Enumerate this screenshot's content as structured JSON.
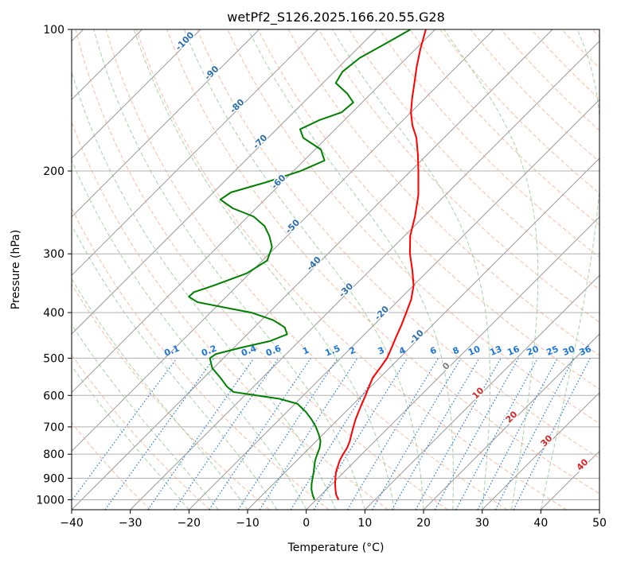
{
  "chart_data": {
    "type": "line",
    "title": "wetPf2_S126.2025.166.20.55.G28",
    "xlabel": "Temperature (°C)",
    "ylabel": "Pressure (hPa)",
    "xlim": [
      -40,
      50
    ],
    "ylim": [
      1050,
      100
    ],
    "y_scale": "log",
    "x_ticks": [
      -40,
      -30,
      -20,
      -10,
      0,
      10,
      20,
      30,
      40,
      50
    ],
    "y_ticks": [
      1000,
      900,
      800,
      700,
      600,
      500,
      400,
      300,
      200,
      100
    ],
    "grid": true,
    "series": [
      {
        "key": "temperature",
        "color": "#ff0000",
        "points": [
          [
            1000,
            3.8
          ],
          [
            975,
            2.5
          ],
          [
            950,
            1.5
          ],
          [
            925,
            0.5
          ],
          [
            900,
            -0.4
          ],
          [
            875,
            -1.3
          ],
          [
            850,
            -2.0
          ],
          [
            825,
            -2.7
          ],
          [
            800,
            -3.2
          ],
          [
            775,
            -3.6
          ],
          [
            750,
            -4.3
          ],
          [
            725,
            -5.2
          ],
          [
            700,
            -6.1
          ],
          [
            675,
            -7.0
          ],
          [
            650,
            -7.8
          ],
          [
            625,
            -8.6
          ],
          [
            600,
            -9.4
          ],
          [
            575,
            -10.3
          ],
          [
            550,
            -11.2
          ],
          [
            525,
            -11.6
          ],
          [
            500,
            -12.1
          ],
          [
            475,
            -13.1
          ],
          [
            450,
            -14.2
          ],
          [
            425,
            -15.3
          ],
          [
            400,
            -16.6
          ],
          [
            375,
            -18.0
          ],
          [
            350,
            -20.0
          ],
          [
            325,
            -22.8
          ],
          [
            300,
            -26.0
          ],
          [
            275,
            -29.0
          ],
          [
            250,
            -31.5
          ],
          [
            225,
            -34.6
          ],
          [
            200,
            -38.7
          ],
          [
            185,
            -41.5
          ],
          [
            170,
            -44.7
          ],
          [
            160,
            -47.5
          ],
          [
            150,
            -50.0
          ],
          [
            140,
            -52.2
          ],
          [
            130,
            -54.4
          ],
          [
            120,
            -56.8
          ],
          [
            110,
            -59.2
          ],
          [
            100,
            -61.6
          ]
        ]
      },
      {
        "key": "dewpoint",
        "color": "#008000",
        "points": [
          [
            1000,
            -0.3
          ],
          [
            975,
            -1.5
          ],
          [
            950,
            -2.6
          ],
          [
            925,
            -3.5
          ],
          [
            900,
            -4.3
          ],
          [
            875,
            -5.1
          ],
          [
            850,
            -6.0
          ],
          [
            825,
            -6.9
          ],
          [
            800,
            -7.6
          ],
          [
            775,
            -8.3
          ],
          [
            750,
            -9.3
          ],
          [
            725,
            -10.8
          ],
          [
            700,
            -12.5
          ],
          [
            675,
            -14.5
          ],
          [
            650,
            -16.8
          ],
          [
            625,
            -19.6
          ],
          [
            610,
            -23.5
          ],
          [
            600,
            -28.0
          ],
          [
            590,
            -32.5
          ],
          [
            575,
            -34.5
          ],
          [
            550,
            -37.2
          ],
          [
            525,
            -40.2
          ],
          [
            500,
            -42.3
          ],
          [
            490,
            -42.0
          ],
          [
            475,
            -38.8
          ],
          [
            460,
            -35.0
          ],
          [
            445,
            -33.2
          ],
          [
            430,
            -34.8
          ],
          [
            415,
            -38.0
          ],
          [
            400,
            -43.0
          ],
          [
            390,
            -48.5
          ],
          [
            380,
            -54.0
          ],
          [
            370,
            -56.4
          ],
          [
            362,
            -56.3
          ],
          [
            350,
            -54.0
          ],
          [
            330,
            -50.5
          ],
          [
            310,
            -49.2
          ],
          [
            290,
            -50.7
          ],
          [
            275,
            -53.0
          ],
          [
            262,
            -55.5
          ],
          [
            250,
            -59.0
          ],
          [
            240,
            -64.0
          ],
          [
            230,
            -67.6
          ],
          [
            222,
            -67.0
          ],
          [
            212,
            -63.0
          ],
          [
            200,
            -58.8
          ],
          [
            190,
            -56.5
          ],
          [
            180,
            -59.0
          ],
          [
            170,
            -64.0
          ],
          [
            163,
            -66.0
          ],
          [
            156,
            -64.3
          ],
          [
            150,
            -61.8
          ],
          [
            143,
            -61.5
          ],
          [
            137,
            -64.0
          ],
          [
            130,
            -67.8
          ],
          [
            123,
            -68.6
          ],
          [
            115,
            -68.0
          ],
          [
            107,
            -66.0
          ],
          [
            100,
            -64.2
          ]
        ]
      }
    ],
    "isotherm_labels": [
      "-100",
      "-90",
      "-80",
      "-70",
      "-60",
      "-50",
      "-40",
      "-30",
      "-20",
      "-10"
    ],
    "mixing_ratio_labels": [
      "0.1",
      "0.2",
      "0.4",
      "0.6",
      "1",
      "1.5",
      "2",
      "3",
      "4",
      "6",
      "8",
      "10",
      "13",
      "16",
      "20",
      "25",
      "30",
      "36"
    ],
    "dry_adiabat_labels": [
      "0",
      "10",
      "20",
      "30",
      "40"
    ],
    "colors": {
      "temperature": "#ff0000",
      "dewpoint": "#008000",
      "isotherm": "#999999",
      "dry_adiabat": "#f4a582",
      "moist_adiabat": "#7fbf7f",
      "mixing_ratio": "#1f77d4",
      "isotherm_label": "#2c6fad",
      "dry_label": "#d62728",
      "zero_label": "#808080"
    }
  }
}
